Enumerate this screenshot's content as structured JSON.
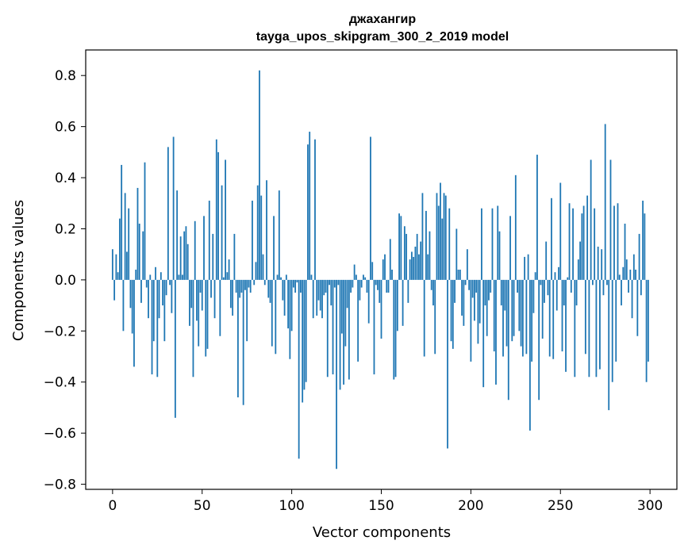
{
  "chart_data": {
    "type": "bar",
    "title": "джахангир",
    "subtitle": "tayga_upos_skipgram_300_2_2019 model",
    "xlabel": "Vector components",
    "ylabel": "Components values",
    "xlim": [
      -15,
      315
    ],
    "ylim": [
      -0.82,
      0.9
    ],
    "x_ticks": [
      0,
      50,
      100,
      150,
      200,
      250,
      300
    ],
    "x_tick_labels": [
      "0",
      "50",
      "100",
      "150",
      "200",
      "250",
      "300"
    ],
    "y_ticks": [
      -0.8,
      -0.6,
      -0.4,
      -0.2,
      0.0,
      0.2,
      0.4,
      0.6,
      0.8
    ],
    "y_tick_labels": [
      "−0.8",
      "−0.6",
      "−0.4",
      "−0.2",
      "0.0",
      "0.2",
      "0.4",
      "0.6",
      "0.8"
    ],
    "bar_color": "#1f77b4",
    "x": "0..299",
    "values": [
      0.12,
      -0.08,
      0.1,
      0.03,
      0.24,
      0.45,
      -0.2,
      0.34,
      0.11,
      0.28,
      -0.11,
      -0.21,
      -0.34,
      0.04,
      0.36,
      0.22,
      -0.09,
      0.19,
      0.46,
      -0.03,
      -0.15,
      0.02,
      -0.37,
      -0.24,
      0.05,
      -0.38,
      -0.15,
      0.03,
      -0.1,
      -0.24,
      -0.06,
      0.52,
      -0.02,
      -0.13,
      0.56,
      -0.54,
      0.35,
      0.02,
      0.17,
      0.02,
      0.19,
      0.21,
      0.14,
      -0.18,
      -0.11,
      -0.38,
      0.23,
      -0.16,
      -0.26,
      -0.05,
      -0.12,
      0.25,
      -0.3,
      -0.27,
      0.31,
      -0.07,
      0.18,
      -0.15,
      0.55,
      0.5,
      -0.22,
      0.37,
      0.01,
      0.47,
      0.03,
      0.08,
      -0.11,
      -0.14,
      0.18,
      -0.05,
      -0.46,
      -0.07,
      -0.05,
      -0.49,
      -0.04,
      -0.24,
      -0.03,
      -0.05,
      0.31,
      -0.02,
      0.07,
      0.37,
      0.82,
      0.33,
      0.1,
      -0.02,
      0.39,
      -0.07,
      -0.09,
      -0.26,
      0.25,
      -0.29,
      0.02,
      0.35,
      0.01,
      -0.08,
      -0.14,
      0.02,
      -0.19,
      -0.31,
      -0.2,
      -0.03,
      -0.05,
      -0.01,
      -0.7,
      -0.05,
      -0.48,
      -0.43,
      -0.4,
      0.53,
      0.58,
      0.02,
      -0.15,
      0.55,
      -0.14,
      -0.08,
      -0.12,
      -0.15,
      -0.06,
      -0.05,
      -0.38,
      -0.02,
      -0.1,
      -0.37,
      -0.03,
      -0.74,
      -0.02,
      -0.43,
      -0.21,
      -0.41,
      -0.26,
      -0.11,
      -0.39,
      -0.05,
      -0.03,
      0.06,
      0.02,
      -0.32,
      -0.08,
      -0.03,
      0.02,
      0.01,
      -0.05,
      -0.17,
      0.56,
      0.07,
      -0.37,
      -0.02,
      -0.04,
      -0.09,
      -0.23,
      0.08,
      0.1,
      -0.05,
      -0.05,
      0.16,
      0.04,
      -0.39,
      -0.38,
      -0.2,
      0.26,
      0.25,
      -0.18,
      0.21,
      0.18,
      -0.09,
      0.08,
      0.11,
      0.09,
      0.13,
      0.18,
      0.1,
      0.15,
      0.34,
      -0.3,
      0.27,
      0.1,
      0.19,
      -0.04,
      -0.1,
      -0.29,
      0.34,
      0.29,
      0.38,
      0.24,
      0.34,
      0.33,
      -0.66,
      0.28,
      -0.24,
      -0.27,
      -0.09,
      0.2,
      0.04,
      0.04,
      -0.14,
      -0.18,
      -0.02,
      0.12,
      -0.04,
      -0.32,
      -0.07,
      -0.16,
      -0.05,
      -0.25,
      -0.17,
      0.28,
      -0.42,
      -0.1,
      -0.22,
      -0.08,
      -0.05,
      0.28,
      -0.28,
      -0.41,
      0.29,
      0.19,
      -0.1,
      -0.3,
      -0.12,
      -0.26,
      -0.47,
      0.25,
      -0.24,
      -0.22,
      0.41,
      -0.05,
      -0.2,
      -0.26,
      -0.3,
      0.09,
      -0.29,
      0.1,
      -0.59,
      -0.32,
      -0.13,
      0.03,
      0.49,
      -0.47,
      -0.02,
      -0.23,
      -0.09,
      0.15,
      -0.06,
      -0.3,
      0.32,
      -0.31,
      0.03,
      -0.12,
      0.05,
      0.38,
      -0.28,
      -0.1,
      -0.36,
      0.01,
      0.3,
      -0.05,
      0.28,
      -0.38,
      -0.1,
      0.08,
      0.15,
      0.26,
      0.29,
      -0.29,
      0.33,
      -0.38,
      0.47,
      -0.02,
      0.28,
      -0.38,
      0.13,
      -0.35,
      0.12,
      -0.06,
      0.61,
      -0.02,
      -0.51,
      0.47,
      -0.4,
      0.29,
      -0.32,
      0.3,
      0.02,
      -0.1,
      0.05,
      0.22,
      0.08,
      -0.05,
      0.04,
      -0.15,
      0.1,
      0.04,
      -0.22,
      0.18,
      -0.06,
      0.31,
      0.26,
      -0.4,
      -0.32
    ]
  }
}
